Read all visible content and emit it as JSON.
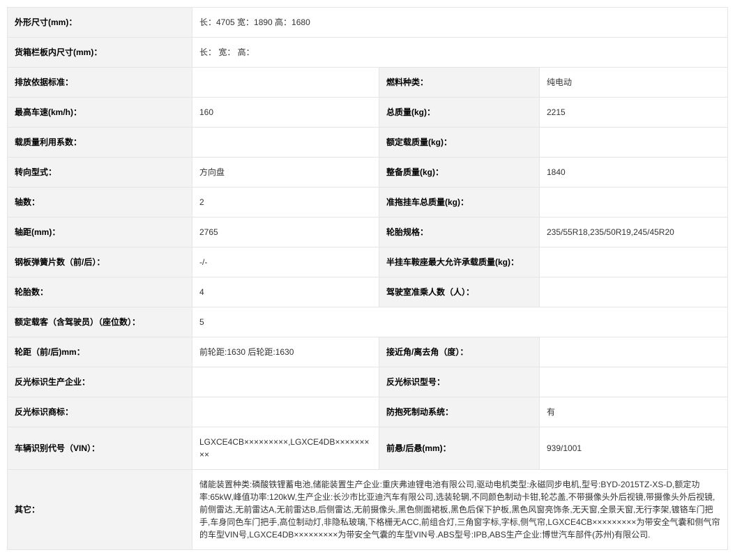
{
  "labels": {
    "dimensions": "外形尺寸(mm)：",
    "cargo_dimensions": "货箱栏板内尺寸(mm)：",
    "emission_standard": "排放依据标准：",
    "fuel_type": "燃料种类：",
    "max_speed": "最高车速(km/h)：",
    "total_mass": "总质量(kg)：",
    "mass_util_coef": "载质量利用系数：",
    "rated_load": "额定载质量(kg)：",
    "steering_type": "转向型式：",
    "curb_mass": "整备质量(kg)：",
    "axle_count": "轴数：",
    "trailer_total_mass": "准拖挂车总质量(kg)：",
    "wheelbase": "轴距(mm)：",
    "tire_spec": "轮胎规格：",
    "leaf_spring": "钢板弹簧片数（前/后）：",
    "semi_trailer_saddle": "半挂车鞍座最大允许承载质量(kg)：",
    "tire_count": "轮胎数：",
    "cab_passengers": "驾驶室准乘人数（人）：",
    "rated_passengers": "额定载客（含驾驶员）（座位数）：",
    "track_width": "轮距（前/后)mm：",
    "approach_departure": "接近角/离去角（度）：",
    "reflector_mfr": "反光标识生产企业：",
    "reflector_model": "反光标识型号：",
    "reflector_trademark": "反光标识商标：",
    "abs": "防抱死制动系统：",
    "vin": "车辆识别代号（VIN）：",
    "overhang": "前悬/后悬(mm)：",
    "other": "其它："
  },
  "values": {
    "dimensions": "长：4705 宽：1890 高：1680",
    "cargo_dimensions": "长： 宽： 高：",
    "emission_standard": "",
    "fuel_type": "纯电动",
    "max_speed": "160",
    "total_mass": "2215",
    "mass_util_coef": "",
    "rated_load": "",
    "steering_type": "方向盘",
    "curb_mass": "1840",
    "axle_count": "2",
    "trailer_total_mass": "",
    "wheelbase": "2765",
    "tire_spec": "235/55R18,235/50R19,245/45R20",
    "leaf_spring": "-/-",
    "semi_trailer_saddle": "",
    "tire_count": "4",
    "cab_passengers": "",
    "rated_passengers": "5",
    "track_width": "前轮距:1630 后轮距:1630",
    "approach_departure": "",
    "reflector_mfr": "",
    "reflector_model": "",
    "reflector_trademark": "",
    "abs": "有",
    "vin": "LGXCE4CB×××××××××,LGXCE4DB×××××××××",
    "overhang": "939/1001",
    "other": "储能装置种类:磷酸铁锂蓄电池,储能装置生产企业:重庆弗迪锂电池有限公司,驱动电机类型:永磁同步电机,型号:BYD-2015TZ-XS-D,额定功率:65kW,峰值功率:120kW,生产企业:长沙市比亚迪汽车有限公司,选装轮辋,不同颜色制动卡钳,轮芯盖,不带摄像头外后视镜,带摄像头外后视镜,前侧雷达,无前雷达A,无前雷达B,后侧雷达,无前摄像头,黑色侧面裙板,黑色后保下护板,黑色风窗亮饰条,无天窗,全景天窗,无行李架,镀铬车门把手,车身同色车门把手,高位制动灯,非隐私玻璃,下格栅无ACC,前组合灯,三角窗字标,字标,侧气帘,LGXCE4CB×××××××××为带安全气囊和侧气帘的车型VIN号,LGXCE4DB×××××××××为带安全气囊的车型VIN号.ABS型号:IPB,ABS生产企业:博世汽车部件(苏州)有限公司."
  }
}
